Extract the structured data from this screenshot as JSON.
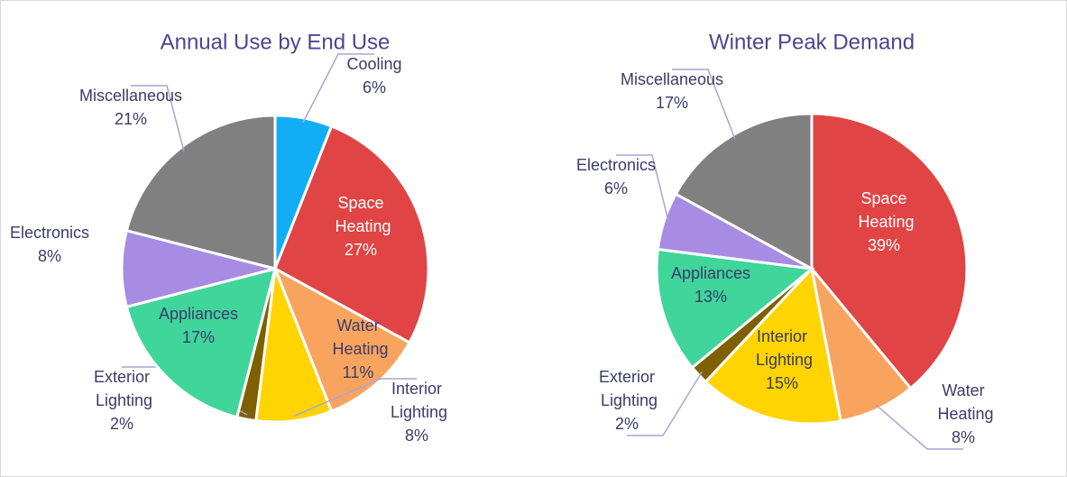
{
  "chart_data": [
    {
      "type": "pie",
      "title": "Annual Use by End Use",
      "categories": [
        "Cooling",
        "Space Heating",
        "Water Heating",
        "Interior Lighting",
        "Exterior Lighting",
        "Appliances",
        "Electronics",
        "Miscellaneous"
      ],
      "values": [
        6,
        27,
        11,
        8,
        2,
        17,
        8,
        21
      ],
      "value_labels": [
        "6%",
        "27%",
        "11%",
        "8%",
        "2%",
        "17%",
        "8%",
        "21%"
      ],
      "colors": [
        "#12aef5",
        "#e04444",
        "#f9a45e",
        "#ffd400",
        "#7f6000",
        "#3fd59b",
        "#a88be2",
        "#808080"
      ]
    },
    {
      "type": "pie",
      "title": "Winter Peak Demand",
      "categories": [
        "Space Heating",
        "Water Heating",
        "Interior Lighting",
        "Exterior Lighting",
        "Appliances",
        "Electronics",
        "Miscellaneous"
      ],
      "values": [
        39,
        8,
        15,
        2,
        13,
        6,
        17
      ],
      "value_labels": [
        "39%",
        "8%",
        "15%",
        "2%",
        "13%",
        "6%",
        "17%"
      ],
      "colors": [
        "#e04444",
        "#f9a45e",
        "#ffd400",
        "#7f6000",
        "#3fd59b",
        "#a88be2",
        "#808080"
      ]
    }
  ]
}
